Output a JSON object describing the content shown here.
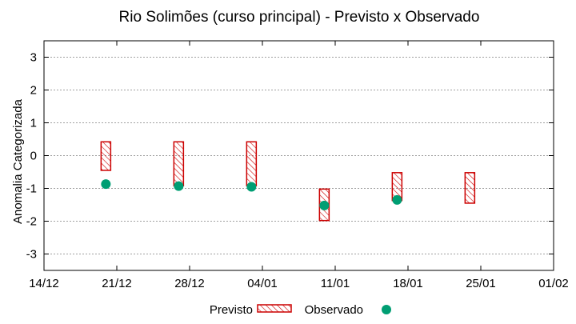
{
  "chart_data": {
    "type": "range_bar_with_points",
    "title": "Rio Solimões (curso principal) - Previsto x Observado",
    "xlabel": "",
    "ylabel": "Anomalia Categorizada",
    "x_tick_labels": [
      "14/12",
      "21/12",
      "28/12",
      "04/01",
      "11/01",
      "18/01",
      "25/01",
      "01/02"
    ],
    "xlim": [
      0,
      7
    ],
    "ylim": [
      -3.5,
      3.5
    ],
    "y_ticks": [
      -3,
      -2,
      -1,
      0,
      1,
      2,
      3
    ],
    "grid": true,
    "legend_position": "bottom-center",
    "series": [
      {
        "name": "Previsto",
        "kind": "range",
        "color": "#cc0000",
        "ranges": [
          {
            "x": 0.85,
            "low": -0.45,
            "high": 0.42
          },
          {
            "x": 1.85,
            "low": -0.92,
            "high": 0.42
          },
          {
            "x": 2.85,
            "low": -0.92,
            "high": 0.42
          },
          {
            "x": 3.85,
            "low": -1.98,
            "high": -1.02
          },
          {
            "x": 4.85,
            "low": -1.37,
            "high": -0.52
          },
          {
            "x": 5.85,
            "low": -1.45,
            "high": -0.52
          }
        ]
      },
      {
        "name": "Observado",
        "kind": "point",
        "color": "#009e73",
        "points": [
          {
            "x": 0.85,
            "y": -0.87
          },
          {
            "x": 1.85,
            "y": -0.93
          },
          {
            "x": 2.85,
            "y": -0.95
          },
          {
            "x": 3.85,
            "y": -1.52
          },
          {
            "x": 4.85,
            "y": -1.35
          }
        ]
      }
    ]
  }
}
